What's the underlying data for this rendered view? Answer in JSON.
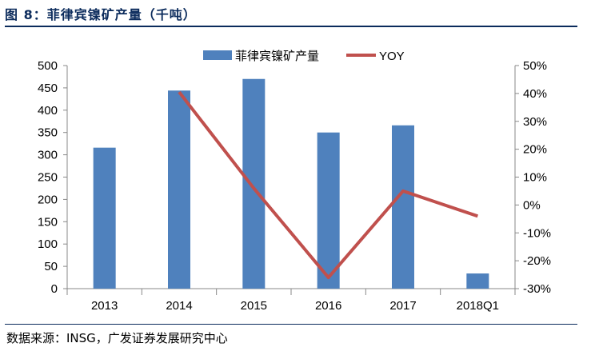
{
  "header": {
    "title": "图 8：菲律宾镍矿产量（千吨）"
  },
  "footer": {
    "source": "数据来源：INSG，广发证券发展研究中心"
  },
  "chart_data": {
    "type": "bar",
    "categories": [
      "2013",
      "2014",
      "2015",
      "2016",
      "2017",
      "2018Q1"
    ],
    "series": [
      {
        "name": "菲律宾镍矿产量",
        "type": "bar",
        "axis": "left",
        "color": "#4f81bd",
        "values": [
          316,
          444,
          470,
          350,
          366,
          34
        ]
      },
      {
        "name": "YOY",
        "type": "line",
        "axis": "right",
        "color": "#c0504d",
        "values": [
          null,
          0.405,
          0.06,
          -0.26,
          0.05,
          -0.04
        ]
      }
    ],
    "y_left": {
      "min": 0,
      "max": 500,
      "ticks": [
        0,
        50,
        100,
        150,
        200,
        250,
        300,
        350,
        400,
        450,
        500
      ]
    },
    "y_right": {
      "min": -0.3,
      "max": 0.5,
      "ticks": [
        -0.3,
        -0.2,
        -0.1,
        0,
        0.1,
        0.2,
        0.3,
        0.4,
        0.5
      ],
      "tick_labels": [
        "-30%",
        "-20%",
        "-10%",
        "0%",
        "10%",
        "20%",
        "30%",
        "40%",
        "50%"
      ]
    },
    "legend_position": "top",
    "grid": false
  }
}
